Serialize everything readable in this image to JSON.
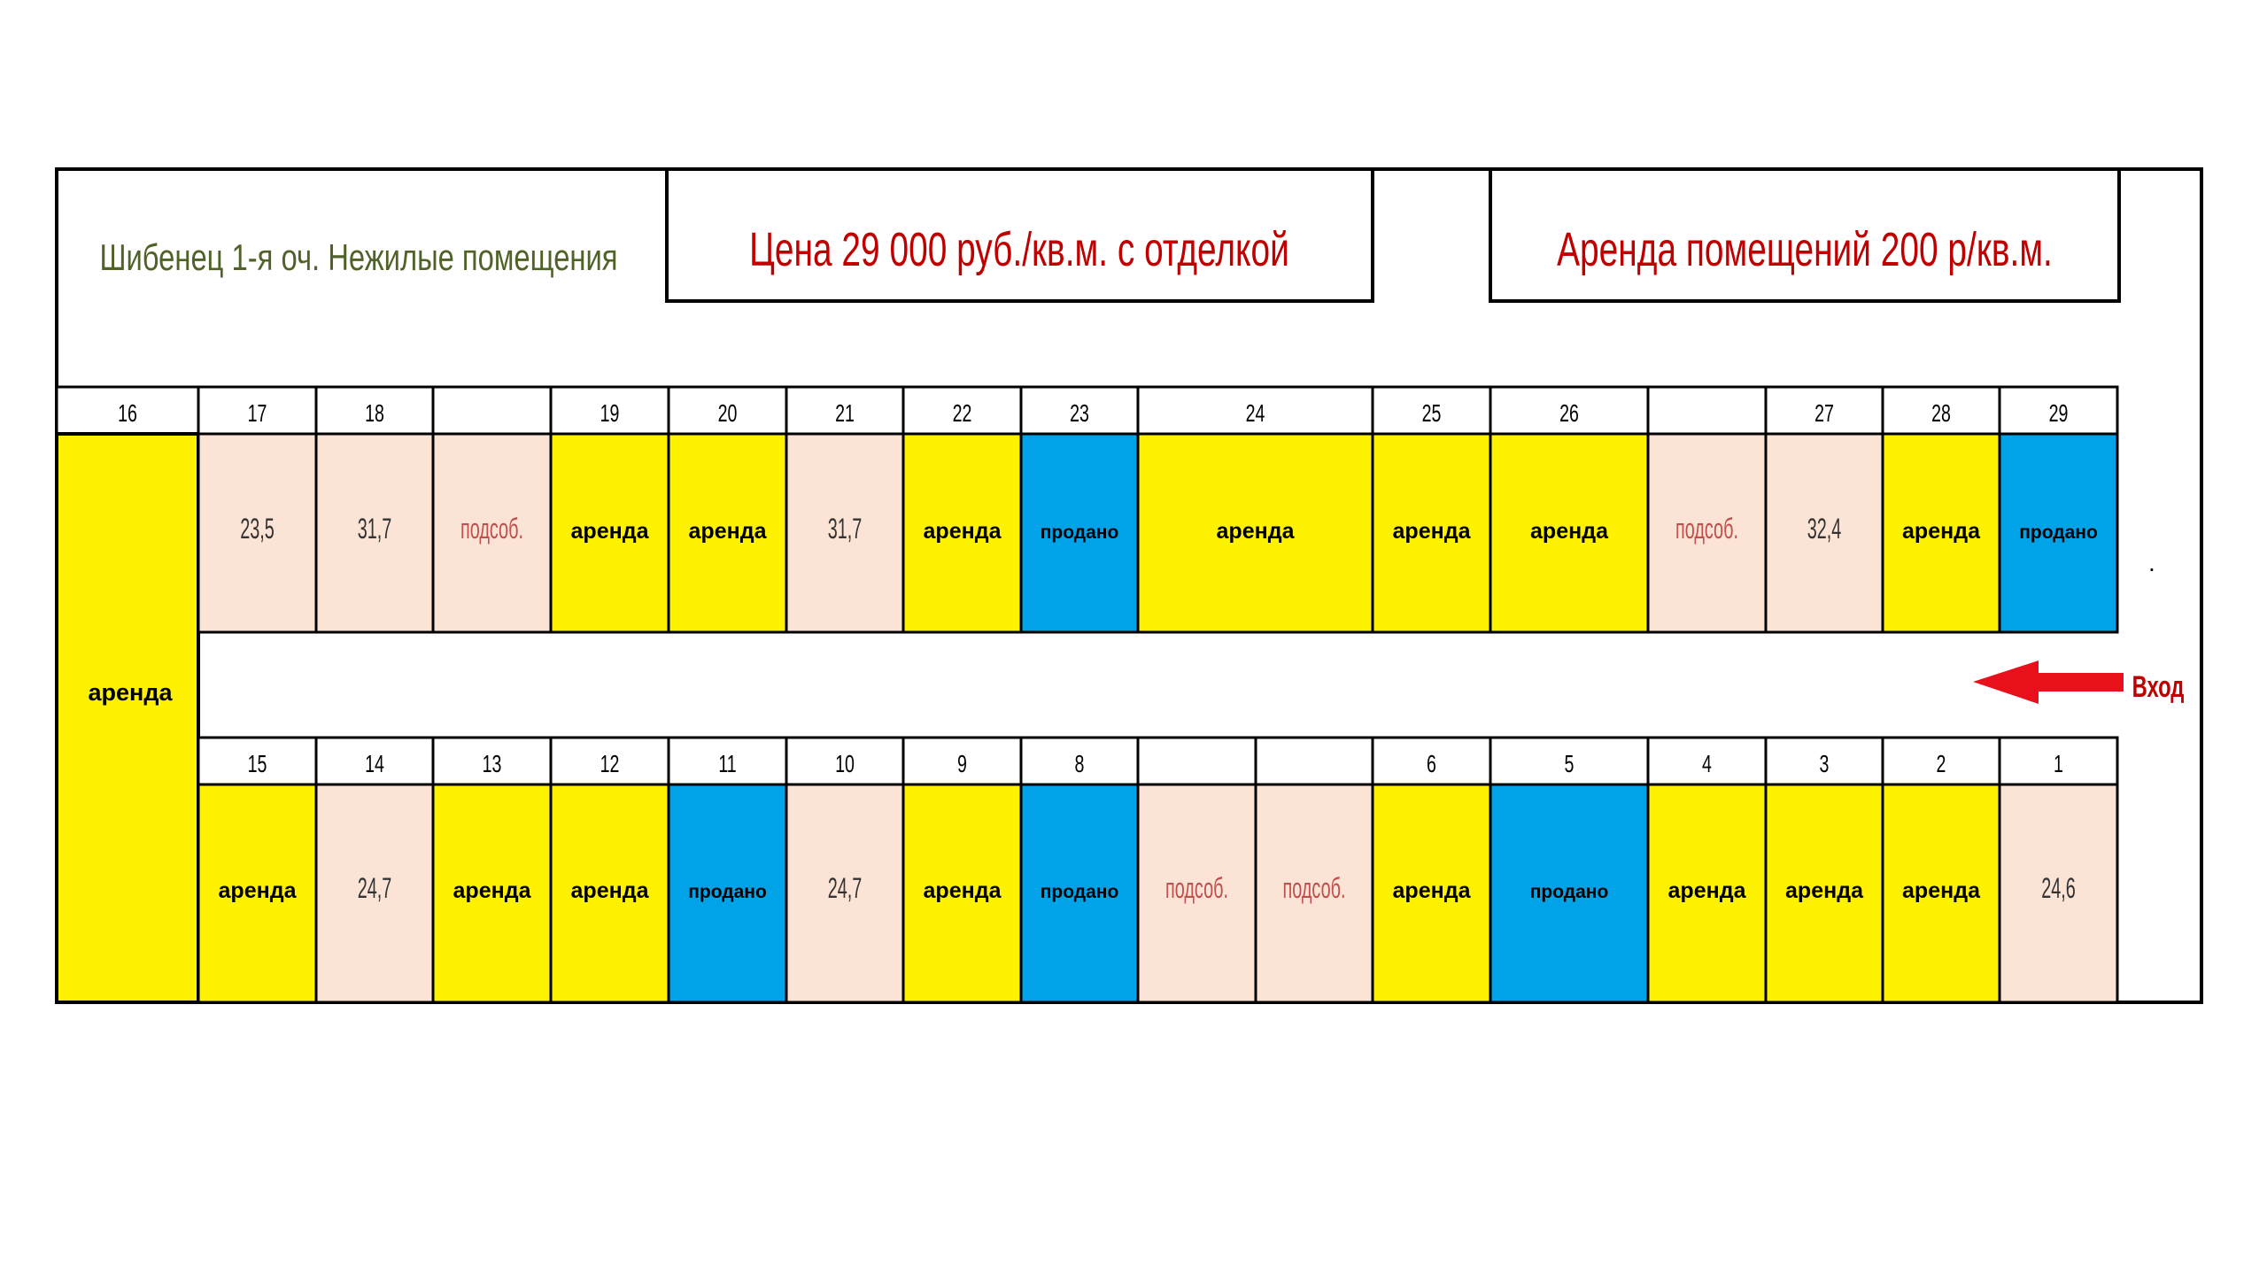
{
  "header": {
    "title": "Шибенец 1-я оч. Нежилые помещения",
    "price": "Цена 29 000 руб./кв.м. с отделкой",
    "rent": "Аренда помещений 200 р/кв.м."
  },
  "colors": {
    "arenda": "#fff200",
    "prodano": "#00a2e8",
    "free": "#fbe4d5",
    "title_text": "#4f6228",
    "price_text": "#c00000",
    "podsob_text": "#c0504d",
    "arrow": "#e8101a"
  },
  "entrance": {
    "label": "Вход"
  },
  "dot": ".",
  "big_unit": {
    "number": "16",
    "status": "arenda",
    "label": "аренда"
  },
  "top_row": [
    {
      "number": "17",
      "status": "free",
      "label": "23,5"
    },
    {
      "number": "18",
      "status": "free",
      "label": "31,7"
    },
    {
      "number": "",
      "status": "podsob",
      "label": "подсоб."
    },
    {
      "number": "19",
      "status": "arenda",
      "label": "аренда"
    },
    {
      "number": "20",
      "status": "arenda",
      "label": "аренда"
    },
    {
      "number": "21",
      "status": "free",
      "label": "31,7"
    },
    {
      "number": "22",
      "status": "arenda",
      "label": "аренда"
    },
    {
      "number": "23",
      "status": "prodano",
      "label": "продано"
    },
    {
      "number": "24",
      "status": "arenda",
      "label": "аренда"
    },
    {
      "number": "25",
      "status": "arenda",
      "label": "аренда"
    },
    {
      "number": "26",
      "status": "arenda",
      "label": "аренда"
    },
    {
      "number": "",
      "status": "podsob",
      "label": "подсоб."
    },
    {
      "number": "27",
      "status": "free",
      "label": "32,4"
    },
    {
      "number": "28",
      "status": "arenda",
      "label": "аренда"
    },
    {
      "number": "29",
      "status": "prodano",
      "label": "продано"
    }
  ],
  "bottom_row": [
    {
      "number": "15",
      "status": "arenda",
      "label": "аренда"
    },
    {
      "number": "14",
      "status": "free",
      "label": "24,7"
    },
    {
      "number": "13",
      "status": "arenda",
      "label": "аренда"
    },
    {
      "number": "12",
      "status": "arenda",
      "label": "аренда"
    },
    {
      "number": "11",
      "status": "prodano",
      "label": "продано"
    },
    {
      "number": "10",
      "status": "free",
      "label": "24,7"
    },
    {
      "number": "9",
      "status": "arenda",
      "label": "аренда"
    },
    {
      "number": "8",
      "status": "prodano",
      "label": "продано"
    },
    {
      "number": "",
      "status": "podsob",
      "label": "подсоб."
    },
    {
      "number": "",
      "status": "podsob",
      "label": "подсоб."
    },
    {
      "number": "6",
      "status": "arenda",
      "label": "аренда"
    },
    {
      "number": "5",
      "status": "prodano",
      "label": "продано"
    },
    {
      "number": "4",
      "status": "arenda",
      "label": "аренда"
    },
    {
      "number": "3",
      "status": "arenda",
      "label": "аренда"
    },
    {
      "number": "2",
      "status": "arenda",
      "label": "аренда"
    },
    {
      "number": "1",
      "status": "free",
      "label": "24,6"
    }
  ]
}
